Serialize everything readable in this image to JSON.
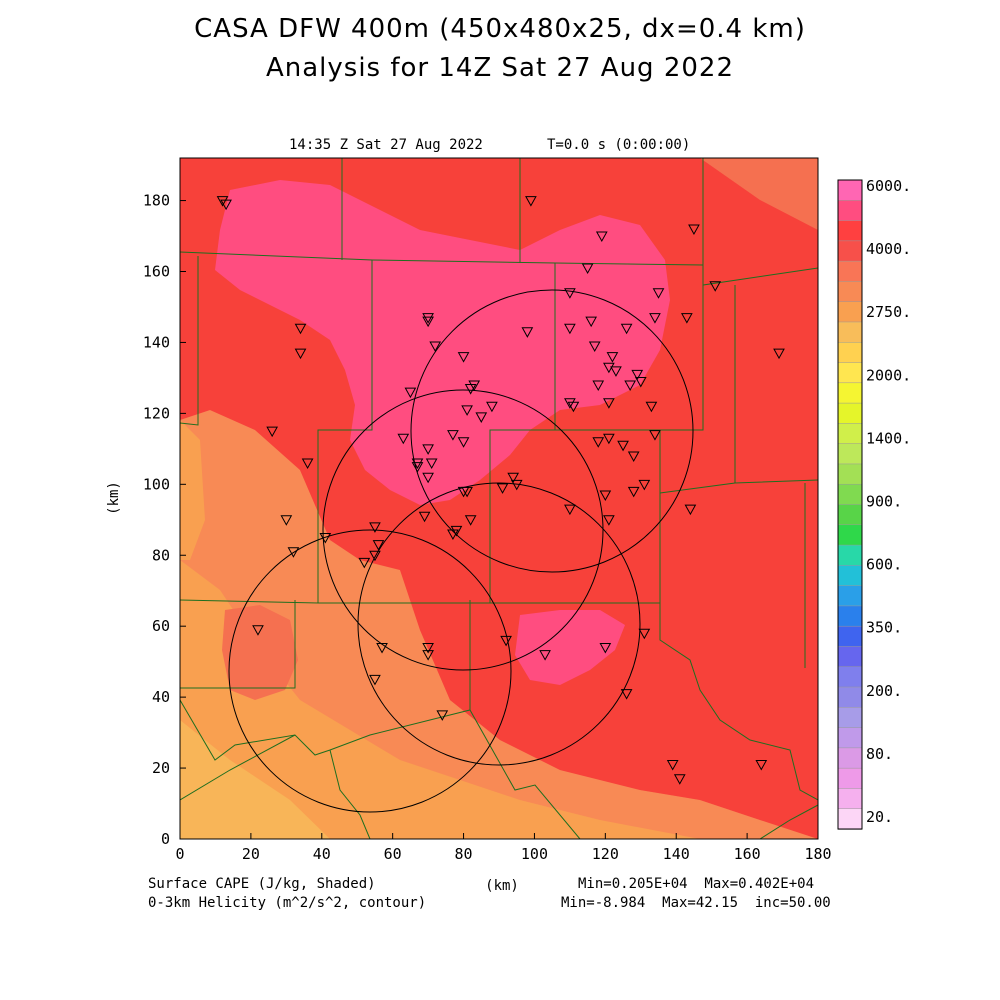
{
  "title_line1": "CASA DFW 400m (450x480x25, dx=0.4 km)",
  "title_line2": "Analysis for 14Z Sat 27 Aug 2022",
  "valid_time": "14:35 Z Sat 27 Aug 2022",
  "time_step": "T=0.0 s (0:00:00)",
  "x_axis_label": "(km)",
  "y_axis_label": "(km)",
  "x_ticks": [
    "0",
    "20",
    "40",
    "60",
    "80",
    "100",
    "120",
    "140",
    "160",
    "180"
  ],
  "y_ticks": [
    "0",
    "20",
    "40",
    "60",
    "80",
    "100",
    "120",
    "140",
    "160",
    "180"
  ],
  "shaded_field_label": "Surface CAPE (J/kg, Shaded)",
  "contour_field_label": "0-3km Helicity (m^2/s^2, contour)",
  "shaded_stats": "Min=0.205E+04  Max=0.402E+04",
  "contour_stats": "Min=-8.984  Max=42.15  inc=50.00",
  "colorbar_labels": [
    "6000.",
    "4000.",
    "2750.",
    "2000.",
    "1400.",
    "900.",
    "600.",
    "350.",
    "200.",
    "80.",
    "20."
  ],
  "colorbar_colors": [
    "#ff66b3",
    "#ff4d80",
    "#ff4040",
    "#f7504a",
    "#f97556",
    "#f88a55",
    "#f9a050",
    "#f8bd5a",
    "#ffd150",
    "#ffe650",
    "#f5f532",
    "#e5f52a",
    "#d0ef4a",
    "#bde85a",
    "#a3e055",
    "#80da50",
    "#58d448",
    "#2fd84a",
    "#28d8a8",
    "#22c0d8",
    "#2a9fe8",
    "#2a80ec",
    "#3f64ef",
    "#6666ee",
    "#7f7fed",
    "#908ae8",
    "#a79ce8",
    "#c09aea",
    "#db9ae6",
    "#ee9ae8",
    "#f5b0ee",
    "#fcd6f6"
  ],
  "field_colors": {
    "c4000": "#ff4d80",
    "c3500": "#f7413a",
    "c3000": "#f57050",
    "c2750": "#f88a55",
    "c2500": "#f9a050",
    "c2250": "#f8b558"
  },
  "boundary_color": "#1f6e1f",
  "radar_circle_color": "#000000"
}
